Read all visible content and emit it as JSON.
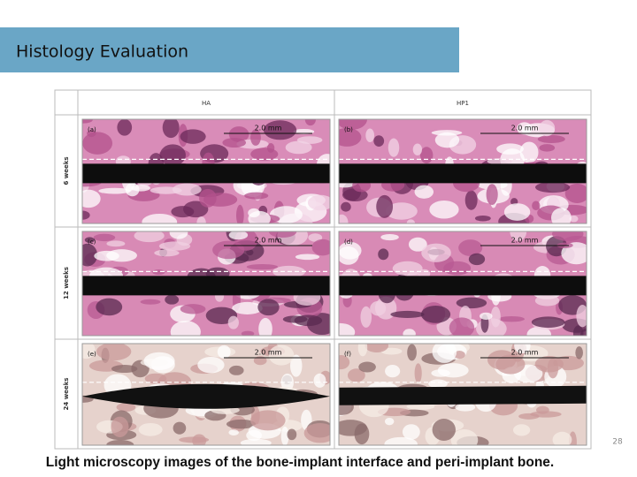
{
  "header": {
    "title": "Histology Evaluation"
  },
  "figure": {
    "columns": [
      "HA",
      "HP1"
    ],
    "rows": [
      {
        "label": "6 weeks",
        "panels": [
          {
            "label": "(a)",
            "scale": "2.0 mm"
          },
          {
            "label": "(b)",
            "scale": "2.0 mm"
          }
        ]
      },
      {
        "label": "12 weeks",
        "panels": [
          {
            "label": "(c)",
            "scale": "2.0 mm"
          },
          {
            "label": "(d)",
            "scale": "2.0 mm"
          }
        ]
      },
      {
        "label": "24 weeks",
        "panels": [
          {
            "label": "(e)",
            "scale": "2.0 mm"
          },
          {
            "label": "(f)",
            "scale": "2.0 mm"
          }
        ]
      }
    ]
  },
  "page_number": "28",
  "caption": "Light microscopy images of the bone-implant interface and peri-implant bone."
}
